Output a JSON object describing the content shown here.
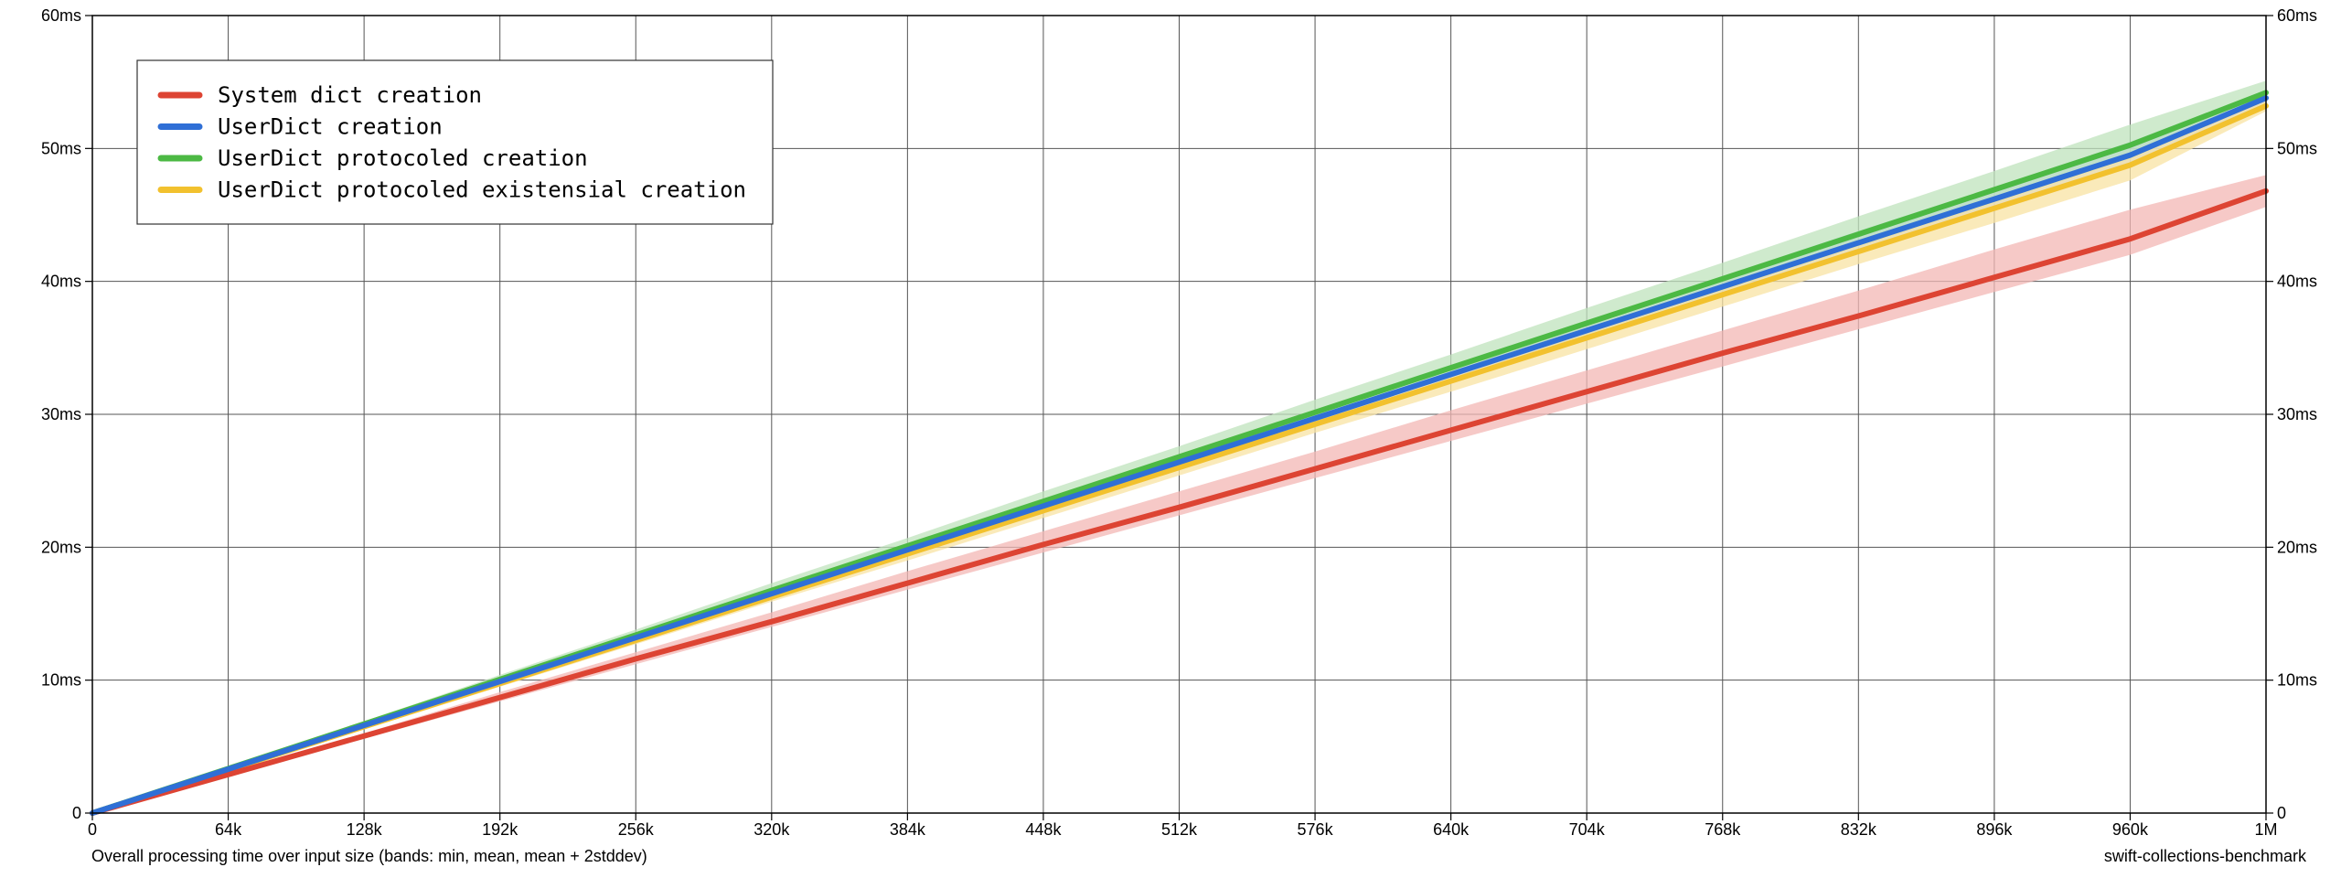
{
  "chart_data": {
    "type": "line",
    "x_tick_labels": [
      "0",
      "64k",
      "128k",
      "192k",
      "256k",
      "320k",
      "384k",
      "448k",
      "512k",
      "576k",
      "640k",
      "704k",
      "768k",
      "832k",
      "896k",
      "960k",
      "1M"
    ],
    "y_tick_labels": [
      "0",
      "10ms",
      "20ms",
      "30ms",
      "40ms",
      "50ms",
      "60ms"
    ],
    "xlim": [
      0,
      1048576
    ],
    "ylim": [
      0,
      60
    ],
    "y_unit": "ms",
    "grid": true,
    "legend_position": "top-left",
    "x": [
      0,
      65536,
      131072,
      196608,
      262144,
      327680,
      393216,
      458752,
      524288,
      589824,
      655360,
      720896,
      786432,
      851968,
      917504,
      983040,
      1048576
    ],
    "series": [
      {
        "name": "System dict creation",
        "color": "#dd4433",
        "band_color": "#f3b7b4",
        "mean": [
          0,
          2.9,
          5.8,
          8.7,
          11.6,
          14.4,
          17.3,
          20.2,
          23.0,
          25.9,
          28.8,
          31.7,
          34.6,
          37.4,
          40.3,
          43.2,
          46.8
        ],
        "min": [
          0,
          2.8,
          5.6,
          8.4,
          11.2,
          14.0,
          16.8,
          19.6,
          22.4,
          25.2,
          28.0,
          30.8,
          33.6,
          36.4,
          39.2,
          42.0,
          45.6
        ],
        "upper": [
          0,
          3.0,
          6.0,
          9.1,
          12.1,
          15.1,
          18.2,
          21.2,
          24.2,
          27.2,
          30.3,
          33.3,
          36.3,
          39.3,
          42.4,
          45.4,
          48.0
        ]
      },
      {
        "name": "UserDict creation",
        "color": "#2f6fd6",
        "band_color": "#b3cbef",
        "mean": [
          0,
          3.3,
          6.6,
          9.9,
          13.2,
          16.5,
          19.8,
          23.1,
          26.4,
          29.7,
          33.0,
          36.3,
          39.6,
          42.9,
          46.2,
          49.5,
          53.8
        ],
        "min": [
          0,
          3.2,
          6.5,
          9.7,
          13.0,
          16.2,
          19.5,
          22.7,
          26.0,
          29.2,
          32.5,
          35.7,
          39.0,
          42.2,
          45.5,
          48.7,
          53.2
        ],
        "upper": [
          0,
          3.4,
          6.7,
          10.1,
          13.5,
          16.8,
          20.2,
          23.6,
          26.9,
          30.3,
          33.7,
          37.0,
          40.4,
          43.8,
          47.1,
          50.5,
          54.4
        ]
      },
      {
        "name": "UserDict protocoled creation",
        "color": "#4cb944",
        "band_color": "#bfe3bc",
        "mean": [
          0,
          3.35,
          6.7,
          10.05,
          13.4,
          16.75,
          20.1,
          23.45,
          26.8,
          30.15,
          33.5,
          36.85,
          40.2,
          43.55,
          46.9,
          50.25,
          54.2
        ],
        "min": [
          0,
          3.25,
          6.5,
          9.8,
          13.1,
          16.4,
          19.7,
          22.9,
          26.2,
          29.5,
          32.8,
          36.0,
          39.3,
          42.6,
          45.9,
          49.2,
          53.6
        ],
        "upper": [
          0,
          3.45,
          6.9,
          10.4,
          13.8,
          17.3,
          20.7,
          24.2,
          27.6,
          31.1,
          34.5,
          38.0,
          41.4,
          44.9,
          48.3,
          51.8,
          55.1
        ]
      },
      {
        "name": "UserDict protocoled existensial creation",
        "color": "#f2c12e",
        "band_color": "#f8e3a3",
        "mean": [
          0,
          3.25,
          6.5,
          9.75,
          13.0,
          16.25,
          19.5,
          22.75,
          26.0,
          29.25,
          32.5,
          35.75,
          39.0,
          42.25,
          45.5,
          48.75,
          53.2
        ],
        "min": [
          0,
          3.15,
          6.3,
          9.5,
          12.7,
          15.9,
          19.0,
          22.2,
          25.4,
          28.6,
          31.7,
          34.9,
          38.1,
          41.3,
          44.4,
          47.6,
          52.8
        ],
        "upper": [
          0,
          3.35,
          6.7,
          10.0,
          13.3,
          16.6,
          19.9,
          23.2,
          26.5,
          29.8,
          33.1,
          36.4,
          39.7,
          43.0,
          46.3,
          49.6,
          54.0
        ]
      }
    ]
  },
  "footer": {
    "caption": "Overall processing time over input size (bands: min, mean, mean + 2stddev)",
    "source": "swift-collections-benchmark"
  }
}
